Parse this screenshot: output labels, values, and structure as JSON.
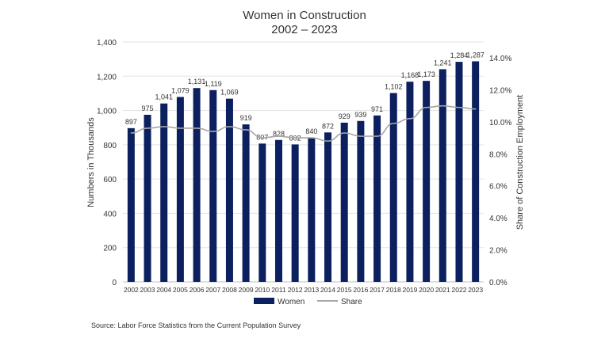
{
  "chart_data": {
    "type": "bar+line",
    "title": [
      "Women in Construction",
      "2002 – 2023"
    ],
    "categories": [
      "2002",
      "2003",
      "2004",
      "2005",
      "2006",
      "2007",
      "2008",
      "2009",
      "2010",
      "2011",
      "2012",
      "2013",
      "2014",
      "2015",
      "2016",
      "2017",
      "2018",
      "2019",
      "2020",
      "2021",
      "2022",
      "2023"
    ],
    "series": [
      {
        "name": "Women",
        "type": "bar",
        "axis": "left",
        "color": "#0c1f5e",
        "values": [
          897,
          975,
          1041,
          1079,
          1131,
          1119,
          1069,
          919,
          807,
          828,
          802,
          840,
          872,
          929,
          939,
          971,
          1102,
          1168,
          1173,
          1241,
          1284,
          1287
        ],
        "labels": [
          "897",
          "975",
          "1,041",
          "1,079",
          "1,131",
          "1,119",
          "1,069",
          "919",
          "807",
          "828",
          "802",
          "840",
          "872",
          "929",
          "939",
          "971",
          "1,102",
          "1,168",
          "1,173",
          "1,241",
          "1,284",
          "1,287"
        ]
      },
      {
        "name": "Share",
        "type": "line",
        "axis": "right",
        "color": "#a6a6a6",
        "values": [
          9.3,
          9.6,
          9.7,
          9.6,
          9.6,
          9.4,
          9.7,
          9.5,
          9.0,
          9.1,
          9.0,
          9.0,
          8.8,
          9.3,
          9.1,
          9.1,
          9.9,
          10.2,
          10.9,
          11.0,
          10.9,
          10.8
        ]
      }
    ],
    "ylabel": "Numbers in Thousands",
    "ylim": [
      0,
      1400
    ],
    "yticks": [
      "0",
      "200",
      "400",
      "600",
      "800",
      "1,000",
      "1,200",
      "1,400"
    ],
    "y2label": "Share of Construction Employment",
    "y2lim": [
      0,
      14
    ],
    "y2ticks": [
      "0.0%",
      "2.0%",
      "4.0%",
      "6.0%",
      "8.0%",
      "10.0%",
      "12.0%",
      "14.0%"
    ],
    "grid": true,
    "legend": "bottom",
    "source": "Source: Labor Force Statistics from the Current Population Survey"
  }
}
